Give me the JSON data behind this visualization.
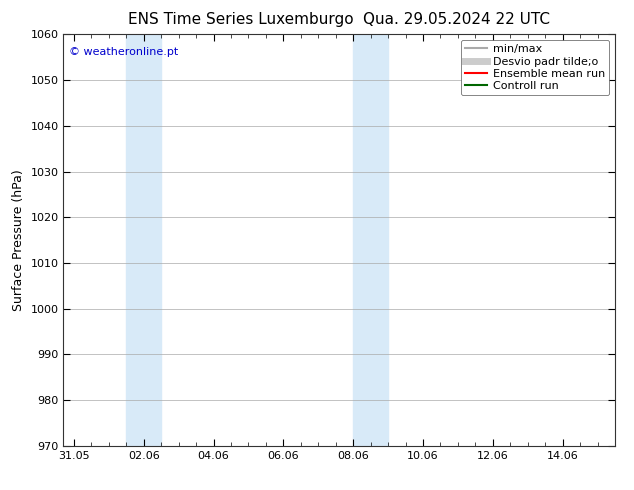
{
  "title_left": "ENS Time Series Luxemburgo",
  "title_right": "Qua. 29.05.2024 22 UTC",
  "ylabel": "Surface Pressure (hPa)",
  "ylim": [
    970,
    1060
  ],
  "yticks": [
    970,
    980,
    990,
    1000,
    1010,
    1020,
    1030,
    1040,
    1050,
    1060
  ],
  "xtick_labels": [
    "31.05",
    "02.06",
    "04.06",
    "06.06",
    "08.06",
    "10.06",
    "12.06",
    "14.06"
  ],
  "xtick_positions": [
    0,
    2,
    4,
    6,
    8,
    10,
    12,
    14
  ],
  "xlim": [
    -0.3,
    15.3
  ],
  "watermark": "© weatheronline.pt",
  "watermark_color": "#0000cc",
  "bg_color": "#ffffff",
  "shaded_regions": [
    {
      "xstart": 1.5,
      "xend": 2.0,
      "color": "#d8eaf8"
    },
    {
      "xstart": 2.0,
      "xend": 2.5,
      "color": "#d8eaf8"
    },
    {
      "xstart": 8.0,
      "xend": 8.5,
      "color": "#d8eaf8"
    },
    {
      "xstart": 8.5,
      "xend": 9.0,
      "color": "#d8eaf8"
    }
  ],
  "legend_entries": [
    {
      "label": "min/max",
      "color": "#aaaaaa",
      "lw": 1.5
    },
    {
      "label": "Desvio padr tilde;o",
      "color": "#cccccc",
      "lw": 5
    },
    {
      "label": "Ensemble mean run",
      "color": "#ff0000",
      "lw": 1.5
    },
    {
      "label": "Controll run",
      "color": "#006600",
      "lw": 1.5
    }
  ],
  "title_fontsize": 11,
  "tick_fontsize": 8,
  "ylabel_fontsize": 9,
  "legend_fontsize": 8
}
